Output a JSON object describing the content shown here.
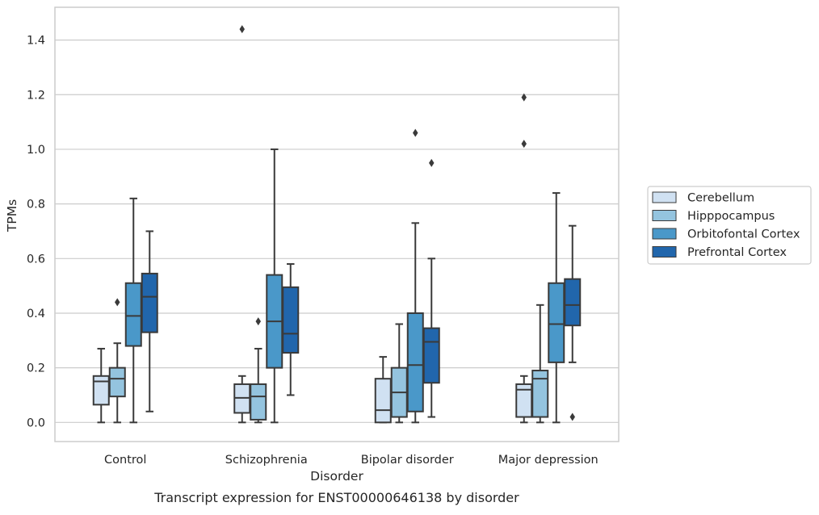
{
  "chart_data": {
    "type": "boxplot",
    "title": "",
    "caption": "Transcript expression for ENST00000646138 by disorder",
    "xlabel": "Disorder",
    "ylabel": "TPMs",
    "ylim": [
      -0.07,
      1.52
    ],
    "yticks": [
      0.0,
      0.2,
      0.4,
      0.6,
      0.8,
      1.0,
      1.2,
      1.4
    ],
    "ytick_labels": [
      "0.0",
      "0.2",
      "0.4",
      "0.6",
      "0.8",
      "1.0",
      "1.2",
      "1.4"
    ],
    "grid": "horizontal",
    "legend_position": "right",
    "categories": [
      "Control",
      "Schizophrenia",
      "Bipolar disorder",
      "Major depression"
    ],
    "series": [
      {
        "name": "Cerebellum",
        "color": "#d0e1f2",
        "boxes": [
          {
            "whislo": 0.0,
            "q1": 0.065,
            "med": 0.15,
            "q3": 0.17,
            "whishi": 0.27,
            "fliers": []
          },
          {
            "whislo": 0.0,
            "q1": 0.035,
            "med": 0.09,
            "q3": 0.14,
            "whishi": 0.17,
            "fliers": [
              1.44
            ]
          },
          {
            "whislo": 0.0,
            "q1": 0.0,
            "med": 0.045,
            "q3": 0.16,
            "whishi": 0.24,
            "fliers": []
          },
          {
            "whislo": 0.0,
            "q1": 0.02,
            "med": 0.12,
            "q3": 0.14,
            "whishi": 0.17,
            "fliers": [
              1.19,
              1.02
            ]
          }
        ]
      },
      {
        "name": "Hipppocampus",
        "color": "#94c4df",
        "boxes": [
          {
            "whislo": 0.0,
            "q1": 0.095,
            "med": 0.16,
            "q3": 0.2,
            "whishi": 0.29,
            "fliers": [
              0.44
            ]
          },
          {
            "whislo": 0.0,
            "q1": 0.01,
            "med": 0.095,
            "q3": 0.14,
            "whishi": 0.27,
            "fliers": [
              0.37
            ]
          },
          {
            "whislo": 0.0,
            "q1": 0.02,
            "med": 0.11,
            "q3": 0.2,
            "whishi": 0.36,
            "fliers": []
          },
          {
            "whislo": 0.0,
            "q1": 0.02,
            "med": 0.16,
            "q3": 0.19,
            "whishi": 0.43,
            "fliers": []
          }
        ]
      },
      {
        "name": "Orbitofontal Cortex",
        "color": "#4a98c9",
        "boxes": [
          {
            "whislo": 0.0,
            "q1": 0.28,
            "med": 0.39,
            "q3": 0.51,
            "whishi": 0.82,
            "fliers": []
          },
          {
            "whislo": 0.0,
            "q1": 0.2,
            "med": 0.37,
            "q3": 0.54,
            "whishi": 1.0,
            "fliers": []
          },
          {
            "whislo": 0.0,
            "q1": 0.04,
            "med": 0.21,
            "q3": 0.4,
            "whishi": 0.73,
            "fliers": [
              1.06
            ]
          },
          {
            "whislo": 0.0,
            "q1": 0.22,
            "med": 0.36,
            "q3": 0.51,
            "whishi": 0.84,
            "fliers": []
          }
        ]
      },
      {
        "name": "Prefrontal Cortex",
        "color": "#2166ac",
        "boxes": [
          {
            "whislo": 0.04,
            "q1": 0.33,
            "med": 0.46,
            "q3": 0.545,
            "whishi": 0.7,
            "fliers": []
          },
          {
            "whislo": 0.1,
            "q1": 0.255,
            "med": 0.325,
            "q3": 0.495,
            "whishi": 0.58,
            "fliers": []
          },
          {
            "whislo": 0.02,
            "q1": 0.145,
            "med": 0.295,
            "q3": 0.345,
            "whishi": 0.6,
            "fliers": [
              0.95
            ]
          },
          {
            "whislo": 0.22,
            "q1": 0.355,
            "med": 0.43,
            "q3": 0.525,
            "whishi": 0.72,
            "fliers": [
              0.02
            ]
          }
        ]
      }
    ]
  }
}
